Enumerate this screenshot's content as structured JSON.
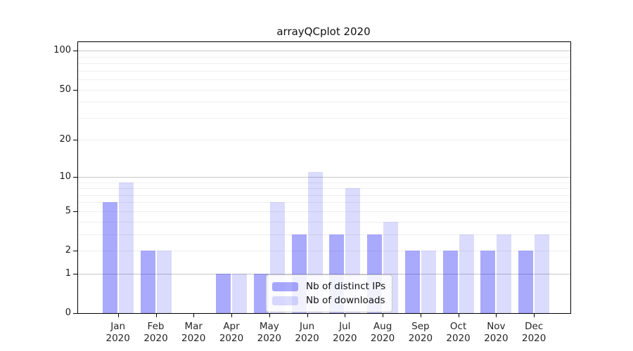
{
  "title": "arrayQCplot 2020",
  "legend": {
    "items": [
      {
        "label": "Nb of distinct IPs",
        "color": "rgba(0,0,245,0.335)"
      },
      {
        "label": "Nb of downloads",
        "color": "rgba(0,0,245,0.140)"
      }
    ]
  },
  "chart_data": {
    "type": "bar",
    "title": "arrayQCplot 2020",
    "y_scale": "log1p",
    "grid": "horizontal",
    "legend_position": "inside-bottom-center",
    "categories": [
      "Jan 2020",
      "Feb 2020",
      "Mar 2020",
      "Apr 2020",
      "May 2020",
      "Jun 2020",
      "Jul 2020",
      "Aug 2020",
      "Sep 2020",
      "Oct 2020",
      "Nov 2020",
      "Dec 2020"
    ],
    "series": [
      {
        "name": "Nb of distinct IPs",
        "color": "rgba(0,0,245,0.335)",
        "values": [
          6,
          2,
          0,
          1,
          1,
          3,
          3,
          3,
          2,
          2,
          2,
          2
        ]
      },
      {
        "name": "Nb of downloads",
        "color": "rgba(0,0,245,0.140)",
        "values": [
          9,
          2,
          0,
          1,
          6,
          11,
          8,
          4,
          2,
          3,
          3,
          3
        ]
      }
    ],
    "ytick_labels": [
      0,
      1,
      2,
      5,
      10,
      20,
      50,
      100
    ],
    "ylim": [
      0,
      116
    ],
    "xlabel": "",
    "ylabel": ""
  }
}
